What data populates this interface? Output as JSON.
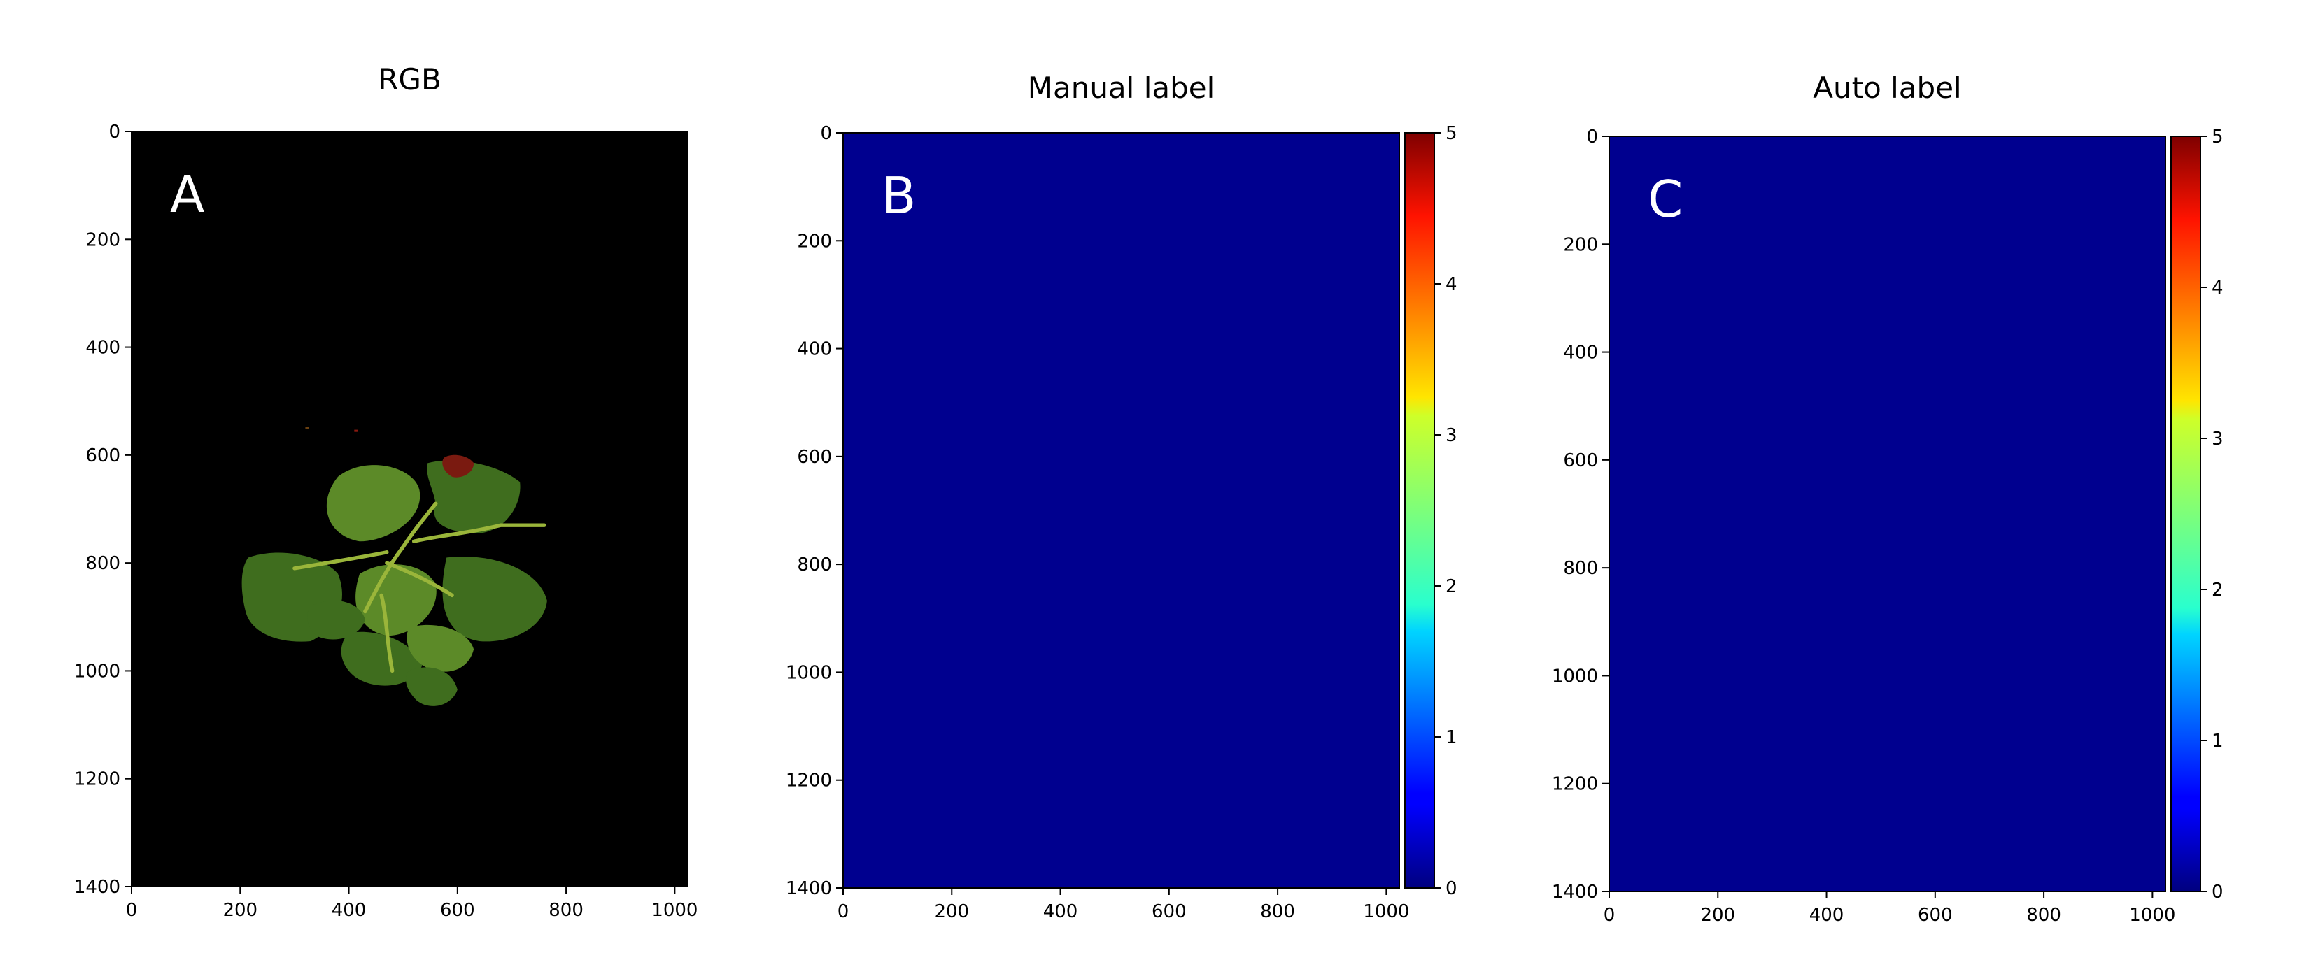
{
  "panels": [
    {
      "title": "RGB",
      "letter": "A",
      "background": "#000000",
      "colorbar": false
    },
    {
      "title": "Manual label",
      "letter": "B",
      "background": "#00008f",
      "colorbar": true
    },
    {
      "title": "Auto label",
      "letter": "C",
      "background": "#00008f",
      "colorbar": true
    }
  ],
  "colors": {
    "rgb_leaf": "#3f6d1e",
    "rgb_leaf_light": "#5c8a28",
    "rgb_stem": "#9ab53a",
    "level1": "#0a54f0",
    "level2": "#28d8d8",
    "level3": "#c8e83c",
    "level5": "#8b0000"
  },
  "colorbar": {
    "ticks": [
      "0",
      "1",
      "2",
      "3",
      "4",
      "5"
    ],
    "colormap": "jet"
  },
  "chart_data": [
    {
      "type": "heatmap",
      "title": "RGB",
      "x_ticks": [
        "0",
        "200",
        "400",
        "600",
        "800",
        "1000"
      ],
      "y_ticks": [
        "0",
        "200",
        "400",
        "600",
        "800",
        "1000",
        "1200",
        "1400"
      ],
      "xlim": [
        0,
        1024
      ],
      "ylim": [
        1400,
        0
      ],
      "annotation": "A"
    },
    {
      "type": "heatmap",
      "title": "Manual label",
      "x_ticks": [
        "0",
        "200",
        "400",
        "600",
        "800",
        "1000"
      ],
      "y_ticks": [
        "0",
        "200",
        "400",
        "600",
        "800",
        "1000",
        "1200",
        "1400"
      ],
      "xlim": [
        0,
        1024
      ],
      "ylim": [
        1400,
        0
      ],
      "colorbar_range": [
        0,
        5
      ],
      "colorbar_ticks": [
        0,
        1,
        2,
        3,
        4,
        5
      ],
      "annotation": "B"
    },
    {
      "type": "heatmap",
      "title": "Auto label",
      "x_ticks": [
        "0",
        "200",
        "400",
        "600",
        "800",
        "1000"
      ],
      "y_ticks": [
        "0",
        "200",
        "400",
        "600",
        "800",
        "1000",
        "1200",
        "1400"
      ],
      "xlim": [
        0,
        1024
      ],
      "ylim": [
        1400,
        0
      ],
      "colorbar_range": [
        0,
        5
      ],
      "colorbar_ticks": [
        0,
        1,
        2,
        3,
        4,
        5
      ],
      "annotation": "C"
    }
  ]
}
